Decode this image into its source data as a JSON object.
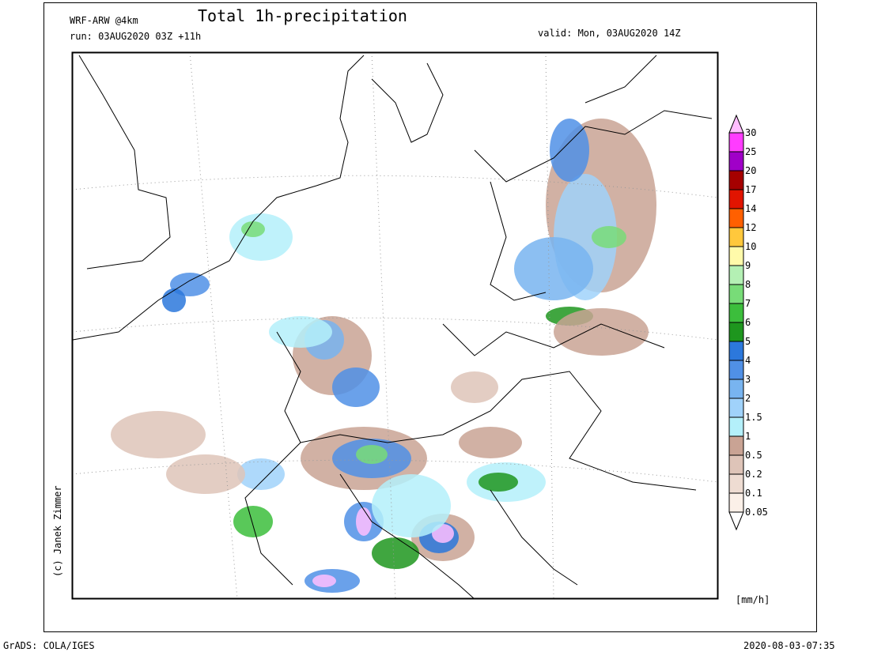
{
  "header": {
    "model": "WRF-ARW @4km",
    "title": "Total 1h-precipitation",
    "run": "run: 03AUG2020 03Z +11h",
    "valid": "valid: Mon, 03AUG2020 14Z"
  },
  "credit": "(c) Janek Zimmer",
  "colorbar": {
    "unit": "[mm/h]",
    "levels": [
      0.05,
      0.1,
      0.2,
      0.5,
      1,
      1.5,
      2,
      3,
      4,
      5,
      6,
      7,
      8,
      9,
      10,
      12,
      14,
      17,
      20,
      25,
      30
    ],
    "colors": [
      "#ffffff",
      "#fbf0e8",
      "#eedcd2",
      "#dec4b8",
      "#c9a394",
      "#b4f0fa",
      "#a0d2fa",
      "#78b4f0",
      "#5090e6",
      "#2c78dc",
      "#1e961e",
      "#3cbe3c",
      "#78dc78",
      "#b4f0b4",
      "#fffaaa",
      "#ffc83c",
      "#ff6000",
      "#e11400",
      "#a50000",
      "#a000c8",
      "#ff3cff",
      "#ffbeff"
    ]
  },
  "footer": {
    "left": "GrADS: COLA/IGES",
    "right": "2020-08-03-07:35"
  }
}
